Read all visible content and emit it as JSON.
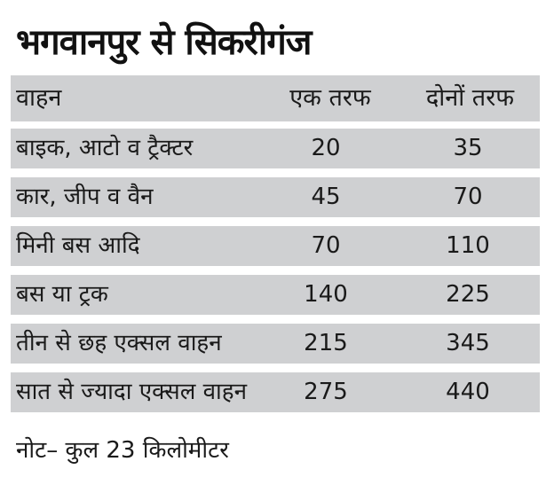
{
  "title": "भगवानपुर से सिकरीगंज",
  "table": {
    "headers": {
      "vehicle": "वाहन",
      "one_way": "एक तरफ",
      "both_ways": "दोनों तरफ"
    },
    "rows": [
      {
        "vehicle": "बाइक, आटो व ट्रैक्टर",
        "one_way": "20",
        "both_ways": "35"
      },
      {
        "vehicle": "कार, जीप व वैन",
        "one_way": "45",
        "both_ways": "70"
      },
      {
        "vehicle": "मिनी बस आदि",
        "one_way": "70",
        "both_ways": "110"
      },
      {
        "vehicle": "बस या ट्रक",
        "one_way": "140",
        "both_ways": "225"
      },
      {
        "vehicle": "तीन से छह एक्सल वाहन",
        "one_way": "215",
        "both_ways": "345"
      },
      {
        "vehicle": "सात से ज्यादा एक्सल वाहन",
        "one_way": "275",
        "both_ways": "440"
      }
    ]
  },
  "note": "नोट– कुल 23 किलोमीटर",
  "colors": {
    "shaded_row": "#cfd0d2",
    "text": "#1a1a1a",
    "background": "#ffffff"
  }
}
